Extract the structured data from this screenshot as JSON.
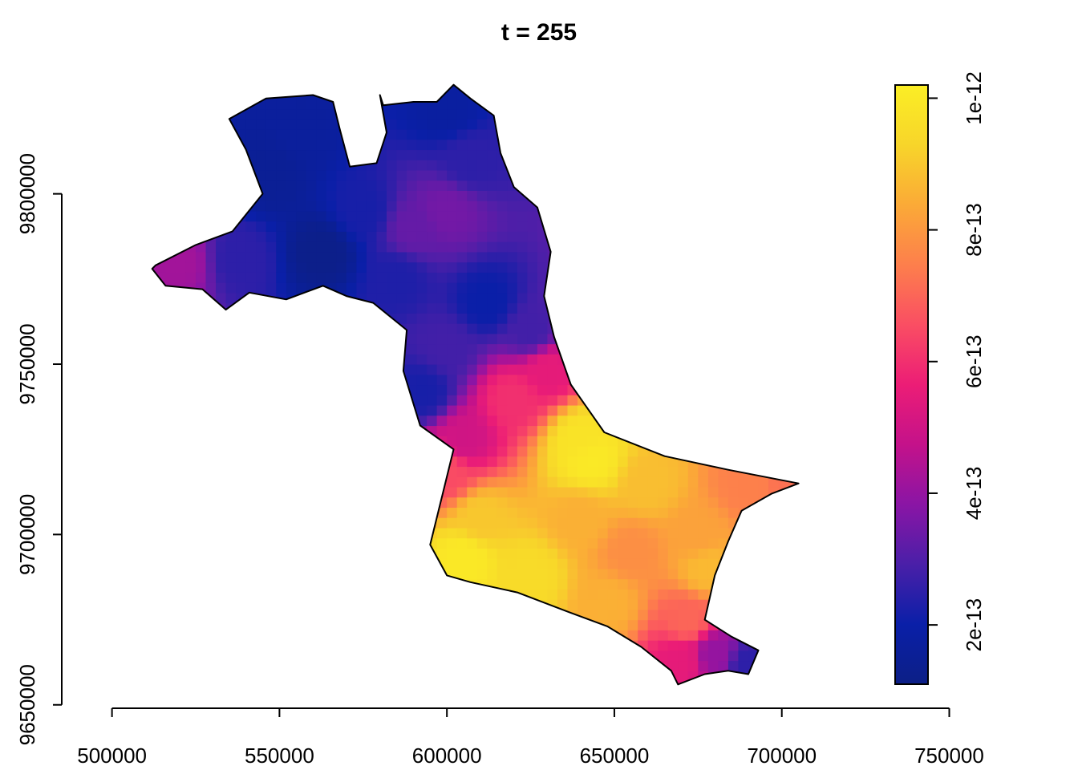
{
  "chart_data": {
    "type": "heatmap",
    "title": "t = 255",
    "xlabel": "",
    "ylabel": "",
    "xlim": [
      485000,
      770000
    ],
    "ylim": [
      9649000,
      9839000
    ],
    "x_ticks": [
      500000,
      550000,
      600000,
      650000,
      700000,
      750000
    ],
    "y_ticks": [
      9650000,
      9700000,
      9750000,
      9800000
    ],
    "x_tick_labels": [
      "500000",
      "550000",
      "600000",
      "650000",
      "700000",
      "750000"
    ],
    "y_tick_labels": [
      "9650000",
      "9700000",
      "9750000",
      "9800000"
    ],
    "legend": {
      "position": "right",
      "range": [
        1.1e-13,
        1.02e-12
      ],
      "ticks": [
        2e-13,
        4e-13,
        6e-13,
        8e-13,
        1e-12
      ],
      "tick_labels": [
        "2e-13",
        "4e-13",
        "6e-13",
        "8e-13",
        "1e-12"
      ],
      "palette": [
        "#0c1f86",
        "#0a1fa8",
        "#4a1fa8",
        "#8a15a5",
        "#c4128a",
        "#ec1d76",
        "#fa4e63",
        "#fd7f4c",
        "#fbaa37",
        "#f7d52a",
        "#fbee25"
      ]
    },
    "region_outline": [
      [
        513000,
        9779000
      ],
      [
        525000,
        9785000
      ],
      [
        536000,
        9789000
      ],
      [
        545000,
        9800000
      ],
      [
        540000,
        9813000
      ],
      [
        535000,
        9822000
      ],
      [
        546000,
        9828000
      ],
      [
        560000,
        9829000
      ],
      [
        566000,
        9827000
      ],
      [
        568000,
        9819000
      ],
      [
        571000,
        9808000
      ],
      [
        579000,
        9809000
      ],
      [
        582000,
        9818000
      ],
      [
        580000,
        9829000
      ],
      [
        581000,
        9826000
      ],
      [
        590000,
        9827000
      ],
      [
        597000,
        9827000
      ],
      [
        602000,
        9832000
      ],
      [
        607000,
        9828000
      ],
      [
        614000,
        9823000
      ],
      [
        616000,
        9812000
      ],
      [
        620000,
        9802000
      ],
      [
        627000,
        9796000
      ],
      [
        631000,
        9783000
      ],
      [
        629000,
        9770000
      ],
      [
        632000,
        9758000
      ],
      [
        637000,
        9744000
      ],
      [
        647000,
        9730000
      ],
      [
        665000,
        9723000
      ],
      [
        684000,
        9719000
      ],
      [
        705000,
        9715000
      ],
      [
        697000,
        9712000
      ],
      [
        688000,
        9707000
      ],
      [
        684000,
        9698000
      ],
      [
        680000,
        9688000
      ],
      [
        677000,
        9675000
      ],
      [
        685000,
        9670000
      ],
      [
        693000,
        9666000
      ],
      [
        690000,
        9659000
      ],
      [
        684000,
        9660000
      ],
      [
        677000,
        9659000
      ],
      [
        669000,
        9656000
      ],
      [
        667000,
        9660000
      ],
      [
        658000,
        9667000
      ],
      [
        648000,
        9673000
      ],
      [
        637000,
        9677000
      ],
      [
        621000,
        9683000
      ],
      [
        607000,
        9686000
      ],
      [
        600000,
        9688000
      ],
      [
        595000,
        9697000
      ],
      [
        599000,
        9713000
      ],
      [
        602000,
        9725000
      ],
      [
        592000,
        9732000
      ],
      [
        587000,
        9748000
      ],
      [
        588000,
        9760000
      ],
      [
        578000,
        9768000
      ],
      [
        570000,
        9770000
      ],
      [
        563000,
        9773000
      ],
      [
        552000,
        9769000
      ],
      [
        541000,
        9771000
      ],
      [
        534000,
        9766000
      ],
      [
        527000,
        9772000
      ],
      [
        516000,
        9773000
      ],
      [
        512000,
        9778000
      ]
    ],
    "field_points": [
      [
        563000,
        9783000,
        1.2e-13
      ],
      [
        547000,
        9805000,
        1.5e-13
      ],
      [
        558000,
        9820000,
        1.7e-13
      ],
      [
        600000,
        9825000,
        1.8e-13
      ],
      [
        607000,
        9810000,
        2.5e-13
      ],
      [
        600000,
        9795000,
        3.5e-13
      ],
      [
        590000,
        9790000,
        3.3e-13
      ],
      [
        585000,
        9775000,
        2.3e-13
      ],
      [
        520000,
        9780000,
        4.2e-13
      ],
      [
        538000,
        9781000,
        2.5e-13
      ],
      [
        575000,
        9795000,
        2.2e-13
      ],
      [
        612000,
        9768000,
        2e-13
      ],
      [
        600000,
        9755000,
        2.8e-13
      ],
      [
        593000,
        9742000,
        2.2e-13
      ],
      [
        625000,
        9760000,
        2.8e-13
      ],
      [
        630000,
        9748000,
        5.5e-13
      ],
      [
        620000,
        9740000,
        6e-13
      ],
      [
        605000,
        9728000,
        5e-13
      ],
      [
        600000,
        9718000,
        6.5e-13
      ],
      [
        640000,
        9728000,
        9.8e-13
      ],
      [
        643000,
        9722000,
        1e-12
      ],
      [
        660000,
        9715000,
        8.8e-13
      ],
      [
        690000,
        9714000,
        7.5e-13
      ],
      [
        703000,
        9715000,
        7.2e-13
      ],
      [
        610000,
        9705000,
        9e-13
      ],
      [
        605000,
        9693000,
        1e-12
      ],
      [
        625000,
        9688000,
        9.5e-13
      ],
      [
        655000,
        9695000,
        7.8e-13
      ],
      [
        675000,
        9700000,
        8.2e-13
      ],
      [
        678000,
        9690000,
        8.7e-13
      ],
      [
        672000,
        9675000,
        7e-13
      ],
      [
        670000,
        9663000,
        5.5e-13
      ],
      [
        680000,
        9665000,
        4e-13
      ],
      [
        690000,
        9662000,
        2.5e-13
      ],
      [
        648000,
        9680000,
        8.5e-13
      ],
      [
        640000,
        9705000,
        8.5e-13
      ]
    ]
  }
}
